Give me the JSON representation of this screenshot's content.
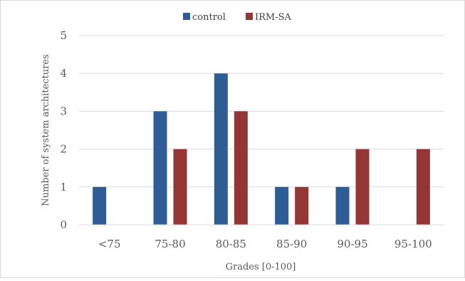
{
  "chart_data": {
    "type": "bar",
    "categories": [
      "<75",
      "75-80",
      "80-85",
      "85-90",
      "90-95",
      "95-100"
    ],
    "series": [
      {
        "name": "control",
        "values": [
          1,
          3,
          4,
          1,
          1,
          0
        ],
        "color": "#2e5d95"
      },
      {
        "name": "IRM-SA",
        "values": [
          0,
          2,
          3,
          1,
          2,
          2
        ],
        "color": "#943634"
      }
    ],
    "title": "",
    "xlabel": "Grades [0-100]",
    "ylabel": "Number of system architectures",
    "ylim": [
      0,
      5
    ],
    "yticks": [
      0,
      1,
      2,
      3,
      4,
      5
    ],
    "grid": true,
    "legend_position": "top-center"
  }
}
